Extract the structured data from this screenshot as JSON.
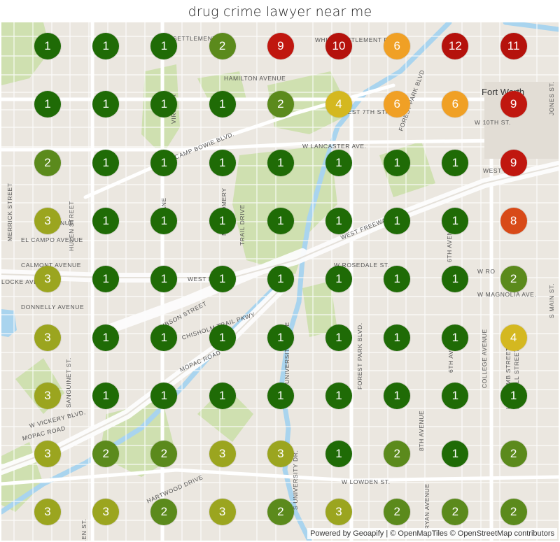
{
  "title": "drug crime lawyer near me",
  "city_label": "Fort Worth",
  "colors": {
    "1": "#1f6b06",
    "2": "#5b8a1c",
    "3": "#9ba51f",
    "4": "#d4b820",
    "6": "#f0a025",
    "8": "#d84a18",
    "9": "#c0170f",
    "10": "#b5120c",
    "11": "#b5120c",
    "12": "#b5120c"
  },
  "grid_ranks": [
    [
      1,
      1,
      1,
      2,
      9,
      10,
      6,
      12,
      11
    ],
    [
      1,
      1,
      1,
      1,
      2,
      4,
      6,
      6,
      9
    ],
    [
      2,
      1,
      1,
      1,
      1,
      1,
      1,
      1,
      9
    ],
    [
      3,
      1,
      1,
      1,
      1,
      1,
      1,
      1,
      8
    ],
    [
      3,
      1,
      1,
      1,
      1,
      1,
      1,
      1,
      2
    ],
    [
      3,
      1,
      1,
      1,
      1,
      1,
      1,
      1,
      4
    ],
    [
      3,
      1,
      1,
      1,
      1,
      1,
      1,
      1,
      1
    ],
    [
      3,
      2,
      2,
      3,
      3,
      1,
      2,
      1,
      2
    ],
    [
      3,
      3,
      2,
      3,
      2,
      3,
      2,
      2,
      2
    ]
  ],
  "streets": {
    "white_settlement": "WHITE SETTLEMENT RD.",
    "settlement_left": "TE SETTLEMENT RD.",
    "hamilton": "HAMILTON AVENUE",
    "w7th": "WEST 7TH STREET",
    "w10th": "W 10TH ST.",
    "lancaster": "W LANCASTER AVE.",
    "camp_bowie": "CAMP BOWIE BLVD.",
    "west_freeway": "WEST FREEWAY",
    "el_campo": "EL CAMPO AVENUE",
    "calmont": "CALMONT AVENUE",
    "locke": "LOCKE AVENUE",
    "donnelly": "DONNELLY AVENUE",
    "rosedale": "W ROSEDALE ST.",
    "magnolia": "W MAGNOLIA AVE.",
    "chisholm": "CHISHOLM TRAIL PKWY",
    "mopac": "MOPAC ROAD",
    "mopac2": "MOPAC ROAD",
    "vickery": "W VICKERY BLVD.",
    "lowden": "W LOWDEN ST.",
    "hartwood": "HARTWOOD DRIVE",
    "hulen": "HULEN STREET",
    "montgomery": "MONTGOMERY",
    "trail_drive": "TRAIL DRIVE",
    "university": "UNIVERSITY DRIVE",
    "s_university": "S UNIVERSITY DR.",
    "forest_park": "FOREST PARK BLVD.",
    "college": "COLLEGE AVENUE",
    "lipscomb": "LIPSCOMB STREET",
    "hemphill": "HEMPHILL STREET",
    "eighth": "8TH AVENUE",
    "sixth": "6TH AVENUE",
    "sixth2": "6TH AVENUE",
    "merrick": "MERRICK STREET",
    "sanguinet": "SANGUINET ST.",
    "jones": "JONES ST.",
    "main": "S MAIN ST.",
    "ryan": "RYAN AVENUE",
    "forest_park_top": "FOREST PARK BLVD",
    "west_fw": "WEST FW",
    "nue": "NUE",
    "w_ro": "W RO",
    "west_f": "WEST F",
    "gibson": "GIBSON STREET",
    "vir": "VIRGINIA",
    "ane": "LANE",
    "len": "LEN ST."
  },
  "attribution": {
    "prefix": "Powered by",
    "geoapify": "Geoapify",
    "sep": " | ",
    "omt": "© OpenMapTiles",
    "osm": "© OpenStreetMap",
    "contributors": "contributors"
  }
}
